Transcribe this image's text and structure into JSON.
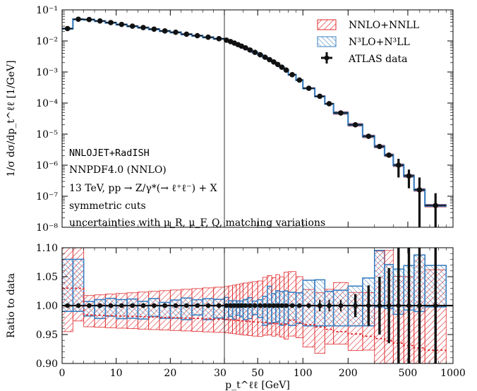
{
  "colors": {
    "nnlo": "#e0272a",
    "n3lo": "#3b7fc0",
    "data": "#111111",
    "grid": "#000000",
    "background": "#ffffff"
  },
  "labels": {
    "top_ylabel": "1/σ dσ/dp_t^ℓℓ [1/GeV]",
    "bottom_ylabel": "Ratio to data",
    "xlabel": "p_t^ℓℓ [GeV]",
    "legend": [
      {
        "key": "nnlo",
        "label": "NNLO+NNLL",
        "style": "band-red"
      },
      {
        "key": "n3lo",
        "label": "N³LO+N³LL",
        "style": "band-blue"
      },
      {
        "key": "data",
        "label": "ATLAS data",
        "style": "marker"
      }
    ],
    "info": [
      "NNLOJET+RadISH",
      "NNPDF4.0 (NNLO)",
      "13 TeV, pp → Z/γ*(→ ℓ⁺ℓ⁻) + X",
      "symmetric cuts",
      "uncertainties with μ_R, μ_F, Q, matching variations"
    ]
  },
  "chart_data": [
    {
      "type": "line",
      "panel": "distribution",
      "ylabel": "1/σ dσ/dp_t^ℓℓ [1/GeV]",
      "yscale": "log",
      "ylim": [
        1e-08,
        0.1
      ],
      "yticks": [
        "10⁻⁸",
        "10⁻⁷",
        "10⁻⁶",
        "10⁻⁵",
        "10⁻⁴",
        "10⁻³",
        "10⁻²",
        "10⁻¹"
      ],
      "xaxis": "linear 0–30, log 30–1000",
      "xlim": [
        0,
        1000
      ],
      "xticks": [
        "0",
        "10",
        "20",
        "30",
        "50",
        "100",
        "200",
        "500",
        "1000"
      ],
      "legend_position": "top-right",
      "series": [
        {
          "name": "NNLO+NNLL",
          "style": "red hatched band"
        },
        {
          "name": "N³LO+N³LL",
          "style": "blue hatched band"
        },
        {
          "name": "ATLAS data",
          "style": "black points with error bars"
        }
      ],
      "bins": [
        [
          0,
          2,
          0.025
        ],
        [
          2,
          4,
          0.05
        ],
        [
          4,
          6,
          0.049
        ],
        [
          6,
          8,
          0.044
        ],
        [
          8,
          10,
          0.039
        ],
        [
          10,
          12,
          0.034
        ],
        [
          12,
          14,
          0.03
        ],
        [
          14,
          16,
          0.027
        ],
        [
          16,
          18,
          0.024
        ],
        [
          18,
          20,
          0.021
        ],
        [
          20,
          22,
          0.019
        ],
        [
          22,
          24,
          0.0165
        ],
        [
          24,
          26,
          0.0148
        ],
        [
          26,
          28,
          0.0132
        ],
        [
          28,
          30,
          0.0118
        ],
        [
          30,
          32,
          0.0106
        ],
        [
          32,
          34,
          0.0095
        ],
        [
          34,
          36,
          0.0085
        ],
        [
          36,
          38,
          0.0076
        ],
        [
          38,
          40,
          0.0068
        ],
        [
          40,
          43,
          0.006
        ],
        [
          43,
          46,
          0.0051
        ],
        [
          46,
          50,
          0.0043
        ],
        [
          50,
          54,
          0.0036
        ],
        [
          54,
          58,
          0.003
        ],
        [
          58,
          62,
          0.0025
        ],
        [
          62,
          66,
          0.0021
        ],
        [
          66,
          70,
          0.00175
        ],
        [
          70,
          75,
          0.00143
        ],
        [
          75,
          80,
          0.00115
        ],
        [
          80,
          90,
          0.00082
        ],
        [
          90,
          100,
          0.00055
        ],
        [
          100,
          120,
          0.0003
        ],
        [
          120,
          140,
          0.000165
        ],
        [
          140,
          160,
          9.5e-05
        ],
        [
          160,
          200,
          4.8e-05
        ],
        [
          200,
          250,
          2e-05
        ],
        [
          250,
          300,
          8.5e-06
        ],
        [
          300,
          350,
          4e-06
        ],
        [
          350,
          400,
          2.1e-06
        ],
        [
          400,
          470,
          1e-06
        ],
        [
          470,
          550,
          4.5e-07
        ],
        [
          550,
          650,
          1.6e-07
        ],
        [
          650,
          900,
          5e-08
        ]
      ]
    },
    {
      "type": "line",
      "panel": "ratio",
      "ylabel": "Ratio to data",
      "ylim": [
        0.9,
        1.1
      ],
      "yticks": [
        "0.90",
        "0.95",
        "1.00",
        "1.05",
        "1.10"
      ],
      "xlim": [
        0,
        1000
      ],
      "xticks": [
        "0",
        "10",
        "20",
        "30",
        "50",
        "100",
        "200",
        "500",
        "1000"
      ]
    }
  ]
}
